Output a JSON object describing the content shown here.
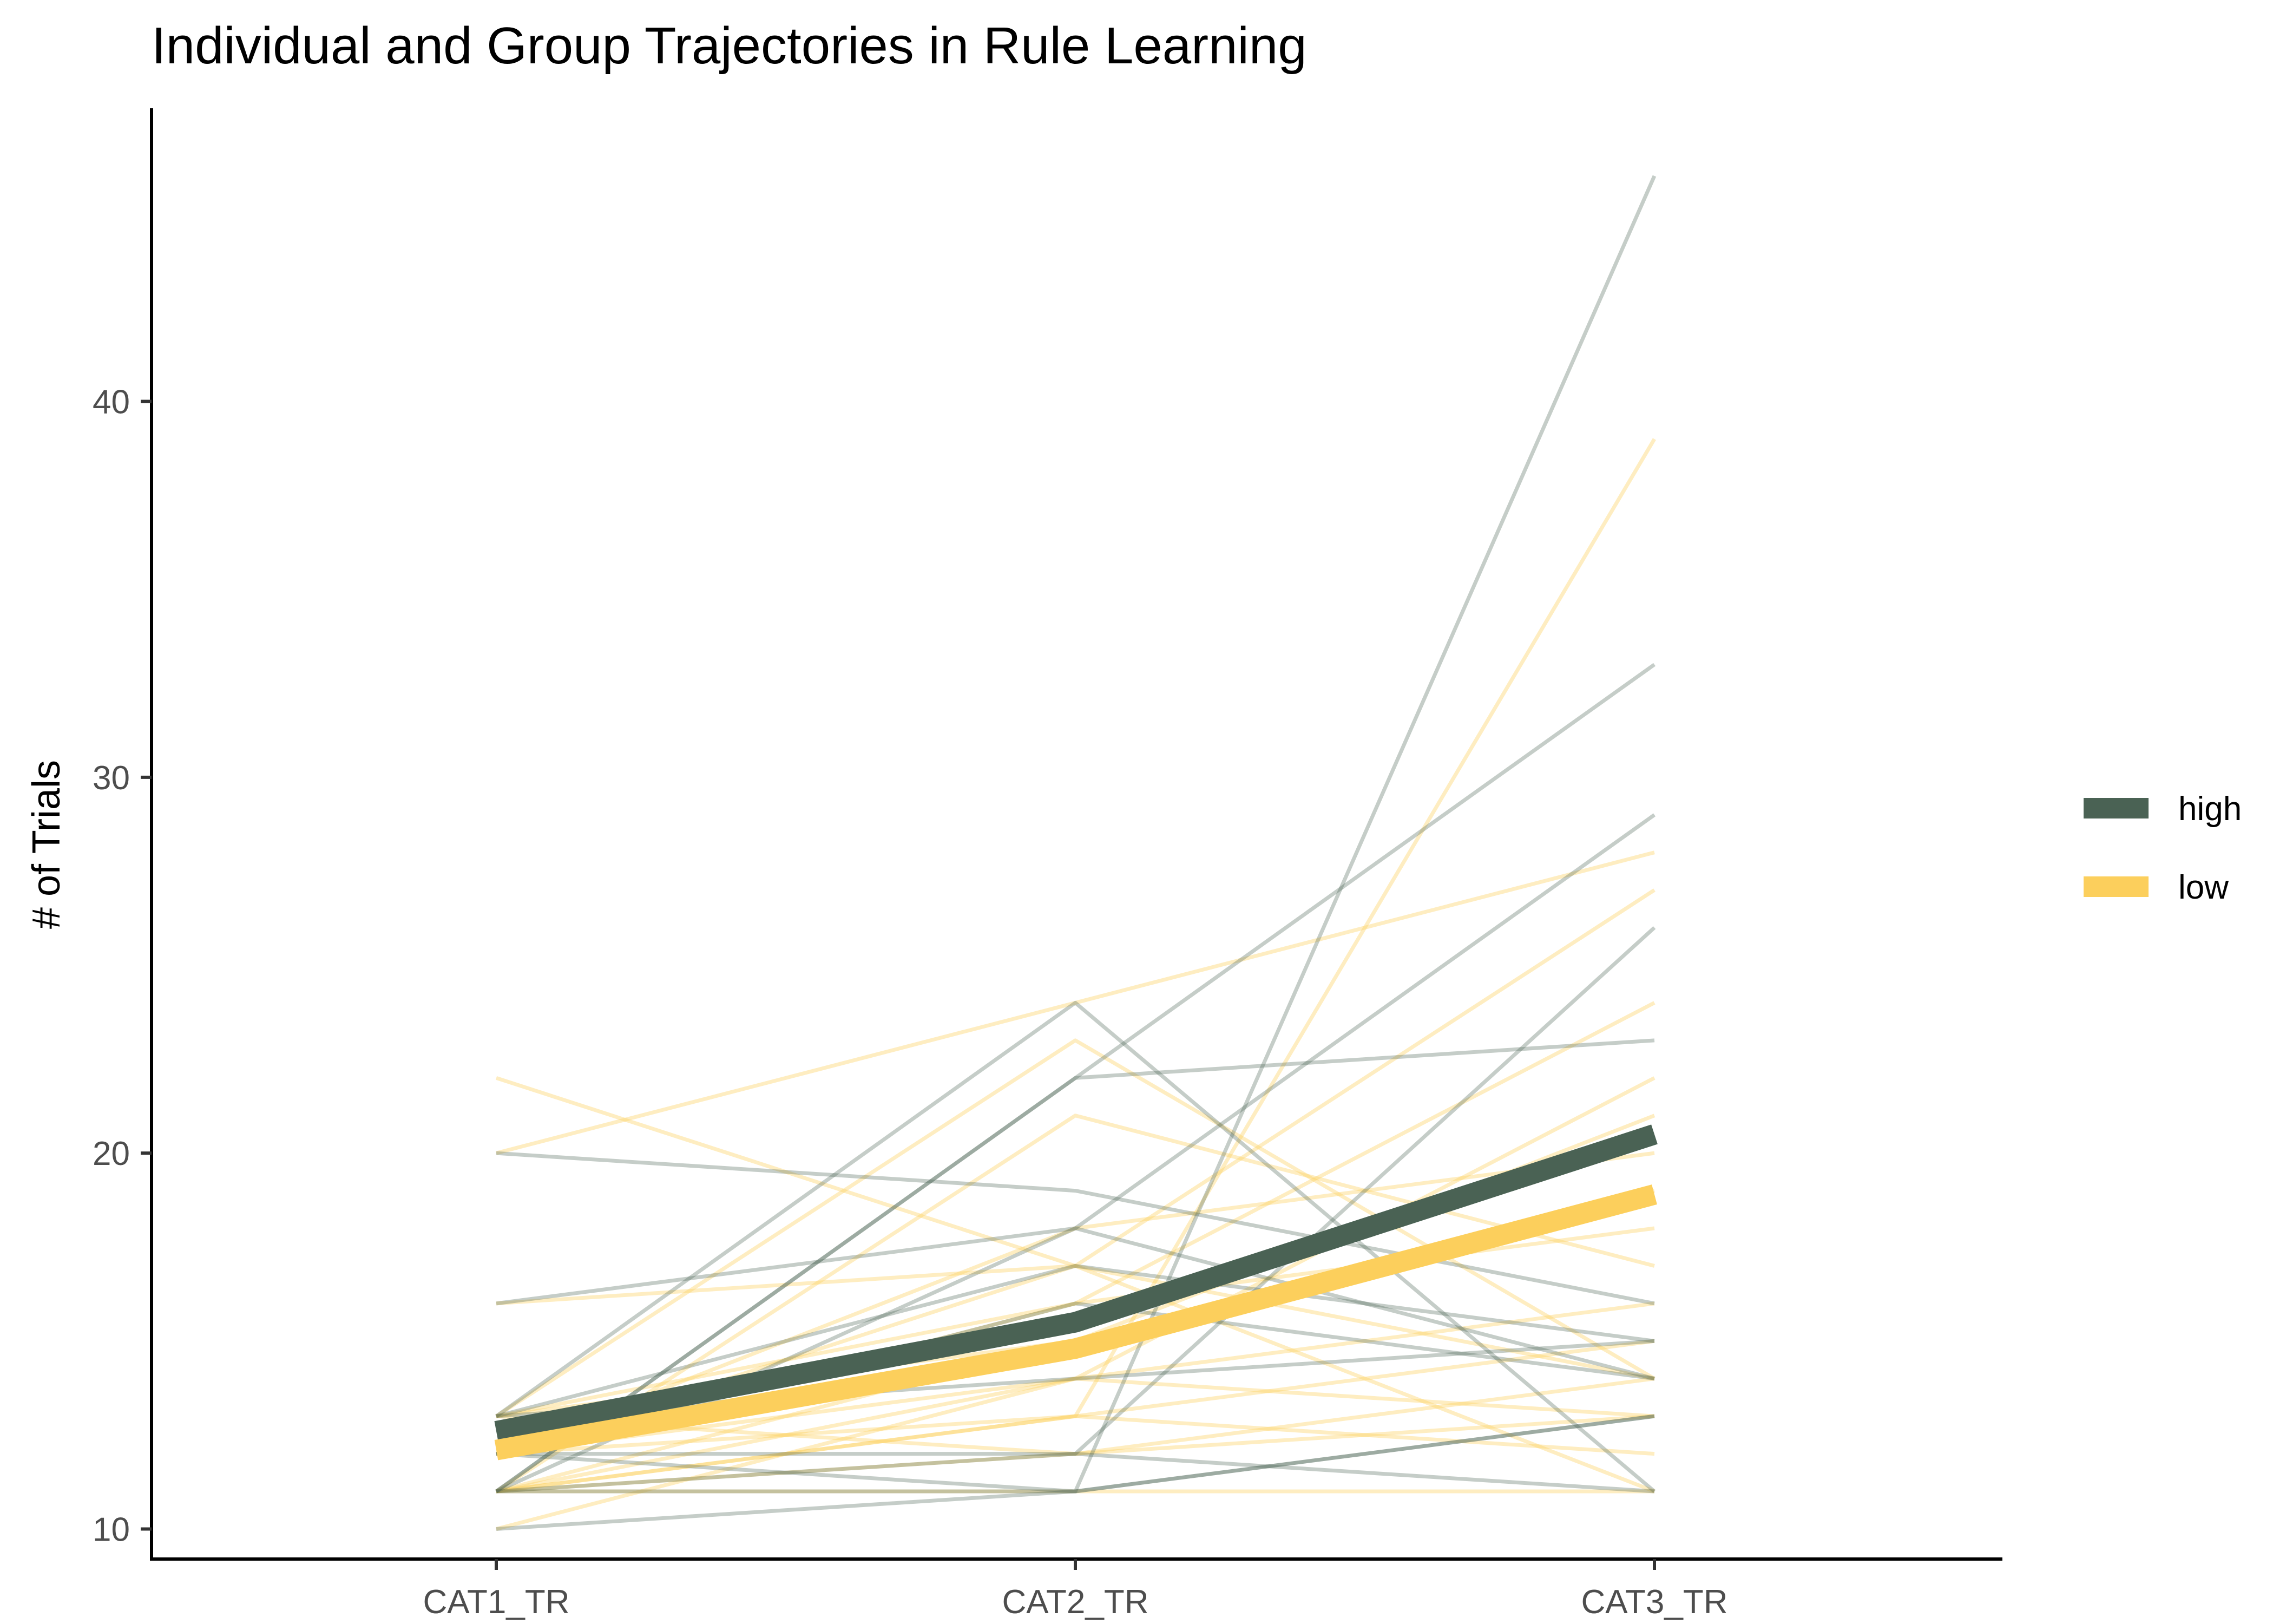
{
  "chart_data": {
    "type": "line",
    "title": "Individual and Group Trajectories in Rule Learning",
    "xlabel": "",
    "ylabel": "# of Trials",
    "categories": [
      "CAT1_TR",
      "CAT2_TR",
      "CAT3_TR"
    ],
    "ylim": [
      9.2,
      47.8
    ],
    "yticks": [
      10,
      20,
      30,
      40
    ],
    "grid": false,
    "legend_position": "right",
    "colors": {
      "high": "#4a6254",
      "low": "#fccf5c"
    },
    "series": [
      {
        "name": "high",
        "values": [
          12.6,
          15.5,
          20.5
        ]
      },
      {
        "name": "low",
        "values": [
          12.1,
          14.8,
          18.9
        ]
      }
    ],
    "individual_trajectories": {
      "high": [
        [
          12,
          11,
          46
        ],
        [
          13,
          24,
          11
        ],
        [
          11,
          22,
          33
        ],
        [
          11,
          18,
          29
        ],
        [
          20,
          19,
          16
        ],
        [
          16,
          18,
          14
        ],
        [
          10,
          11,
          13
        ],
        [
          12,
          12,
          26
        ],
        [
          13,
          17,
          15
        ],
        [
          11,
          22,
          23
        ],
        [
          13,
          14,
          15
        ],
        [
          11,
          11,
          13
        ],
        [
          12,
          16,
          14
        ],
        [
          11,
          12,
          11
        ]
      ],
      "low": [
        [
          11,
          13,
          39
        ],
        [
          20,
          24,
          28
        ],
        [
          22,
          17,
          14
        ],
        [
          16,
          17,
          27
        ],
        [
          13,
          23,
          14
        ],
        [
          11,
          21,
          17
        ],
        [
          12,
          16,
          24
        ],
        [
          11,
          14,
          22
        ],
        [
          13,
          15,
          21
        ],
        [
          12,
          13,
          12
        ],
        [
          11,
          12,
          13
        ],
        [
          11,
          11,
          11
        ],
        [
          12,
          18,
          20
        ],
        [
          10,
          14,
          16
        ],
        [
          13,
          12,
          14
        ],
        [
          11,
          15,
          19
        ],
        [
          12,
          17,
          11
        ],
        [
          11,
          13,
          15
        ],
        [
          13,
          16,
          18
        ],
        [
          12,
          14,
          13
        ]
      ]
    }
  }
}
